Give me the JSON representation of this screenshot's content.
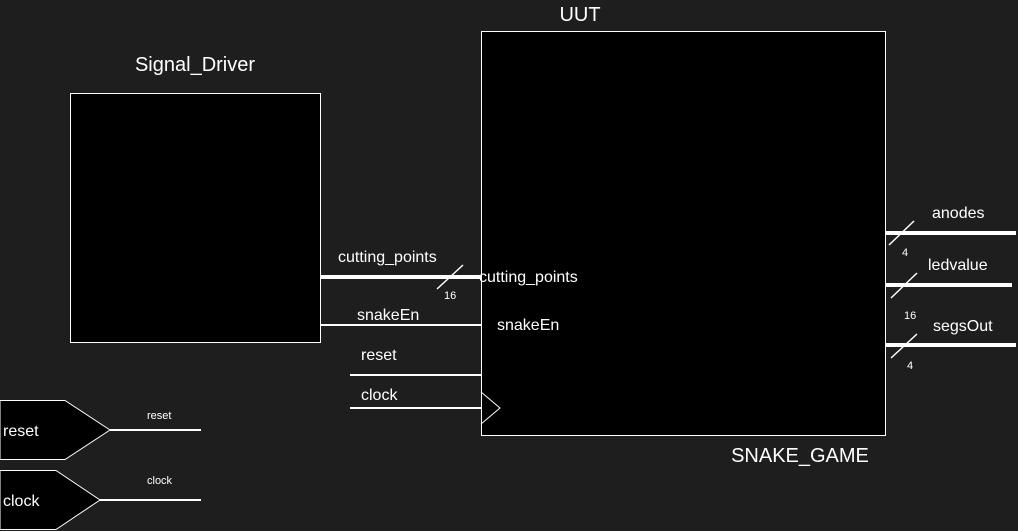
{
  "diagram": {
    "uut_instance": "UUT",
    "uut_module": "SNAKE_GAME",
    "driver_instance": "Signal_Driver",
    "uut_inputs": [
      "cutting_points",
      "snakeEn"
    ],
    "nets": {
      "cutting_points": {
        "label": "cutting_points",
        "width": "16"
      },
      "snakeEn": {
        "label": "snakeEn"
      },
      "reset": {
        "label": "reset"
      },
      "clock": {
        "label": "clock"
      }
    },
    "outputs": [
      {
        "label": "anodes",
        "width": "4"
      },
      {
        "label": "ledvalue",
        "width": "16"
      },
      {
        "label": "segsOut",
        "width": "4"
      }
    ],
    "ports": [
      {
        "label": "reset",
        "net": "reset"
      },
      {
        "label": "clock",
        "net": "clock"
      }
    ]
  },
  "colors": {
    "background": "#1e1e1e",
    "block_fill": "#000000",
    "stroke": "#ffffff",
    "text": "#ffffff"
  }
}
